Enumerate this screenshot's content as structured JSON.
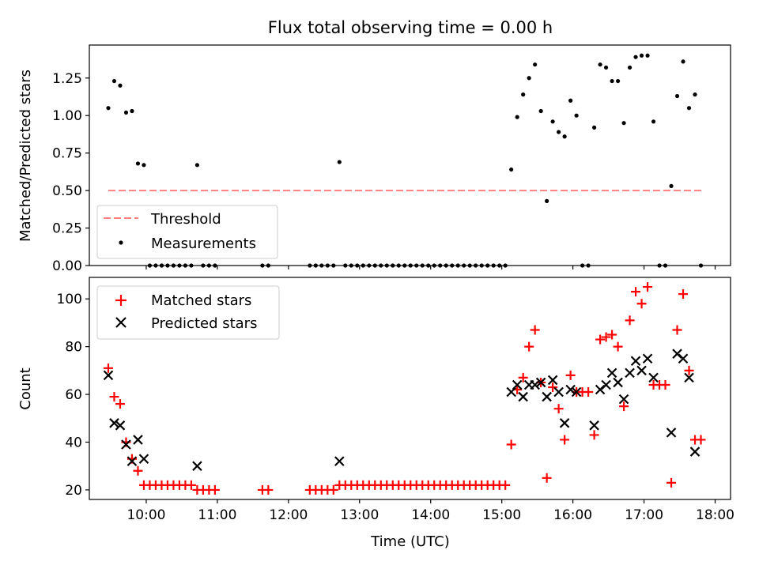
{
  "title": "Flux total observing time = 0.00 h",
  "chart_data": [
    {
      "type": "scatter",
      "ylabel": "Matched/Predicted stars",
      "xlim": [
        "09:12",
        "18:13"
      ],
      "ylim": [
        0,
        1.47
      ],
      "yticks": [
        "0.00",
        "0.25",
        "0.50",
        "0.75",
        "1.00",
        "1.25"
      ],
      "legend_position": "lower-left",
      "threshold": {
        "name": "Threshold",
        "color": "#ff7f7f",
        "style": "dashed",
        "value": 0.5,
        "x_range": [
          "09:28",
          "17:49"
        ]
      },
      "series": [
        {
          "name": "Measurements",
          "marker": "dot",
          "color": "#000000",
          "points": [
            [
              "09:28",
              1.05
            ],
            [
              "09:33",
              1.23
            ],
            [
              "09:38",
              1.2
            ],
            [
              "09:43",
              1.02
            ],
            [
              "09:48",
              1.03
            ],
            [
              "09:53",
              0.68
            ],
            [
              "09:58",
              0.67
            ],
            [
              "10:03",
              0.0
            ],
            [
              "10:08",
              0.0
            ],
            [
              "10:13",
              0.0
            ],
            [
              "10:18",
              0.0
            ],
            [
              "10:23",
              0.0
            ],
            [
              "10:28",
              0.0
            ],
            [
              "10:33",
              0.0
            ],
            [
              "10:38",
              0.0
            ],
            [
              "10:43",
              0.67
            ],
            [
              "10:48",
              0.0
            ],
            [
              "10:53",
              0.0
            ],
            [
              "10:58",
              0.0
            ],
            [
              "11:38",
              0.0
            ],
            [
              "11:43",
              0.0
            ],
            [
              "12:18",
              0.0
            ],
            [
              "12:23",
              0.0
            ],
            [
              "12:28",
              0.0
            ],
            [
              "12:33",
              0.0
            ],
            [
              "12:38",
              0.0
            ],
            [
              "12:43",
              0.69
            ],
            [
              "12:48",
              0.0
            ],
            [
              "12:53",
              0.0
            ],
            [
              "12:58",
              0.0
            ],
            [
              "13:03",
              0.0
            ],
            [
              "13:08",
              0.0
            ],
            [
              "13:13",
              0.0
            ],
            [
              "13:18",
              0.0
            ],
            [
              "13:23",
              0.0
            ],
            [
              "13:28",
              0.0
            ],
            [
              "13:33",
              0.0
            ],
            [
              "13:38",
              0.0
            ],
            [
              "13:43",
              0.0
            ],
            [
              "13:48",
              0.0
            ],
            [
              "13:53",
              0.0
            ],
            [
              "13:58",
              0.0
            ],
            [
              "14:03",
              0.0
            ],
            [
              "14:08",
              0.0
            ],
            [
              "14:13",
              0.0
            ],
            [
              "14:18",
              0.0
            ],
            [
              "14:23",
              0.0
            ],
            [
              "14:28",
              0.0
            ],
            [
              "14:33",
              0.0
            ],
            [
              "14:38",
              0.0
            ],
            [
              "14:43",
              0.0
            ],
            [
              "14:48",
              0.0
            ],
            [
              "14:53",
              0.0
            ],
            [
              "14:58",
              0.0
            ],
            [
              "15:03",
              0.0
            ],
            [
              "15:08",
              0.64
            ],
            [
              "15:13",
              0.99
            ],
            [
              "15:18",
              1.14
            ],
            [
              "15:23",
              1.25
            ],
            [
              "15:28",
              1.34
            ],
            [
              "15:33",
              1.03
            ],
            [
              "15:38",
              0.43
            ],
            [
              "15:43",
              0.96
            ],
            [
              "15:48",
              0.89
            ],
            [
              "15:53",
              0.86
            ],
            [
              "15:58",
              1.1
            ],
            [
              "16:03",
              1.0
            ],
            [
              "16:08",
              0.0
            ],
            [
              "16:13",
              0.0
            ],
            [
              "16:18",
              0.92
            ],
            [
              "16:23",
              1.34
            ],
            [
              "16:28",
              1.32
            ],
            [
              "16:33",
              1.23
            ],
            [
              "16:38",
              1.23
            ],
            [
              "16:43",
              0.95
            ],
            [
              "16:48",
              1.32
            ],
            [
              "16:53",
              1.39
            ],
            [
              "16:58",
              1.4
            ],
            [
              "17:03",
              1.4
            ],
            [
              "17:08",
              0.96
            ],
            [
              "17:13",
              0.0
            ],
            [
              "17:18",
              0.0
            ],
            [
              "17:23",
              0.53
            ],
            [
              "17:28",
              1.13
            ],
            [
              "17:33",
              1.36
            ],
            [
              "17:38",
              1.05
            ],
            [
              "17:43",
              1.14
            ],
            [
              "17:48",
              0.0
            ]
          ]
        }
      ]
    },
    {
      "type": "scatter",
      "xlabel": "Time (UTC)",
      "ylabel": "Count",
      "xlim": [
        "09:12",
        "18:13"
      ],
      "ylim": [
        16,
        109
      ],
      "xticks": [
        "10:00",
        "11:00",
        "12:00",
        "13:00",
        "14:00",
        "15:00",
        "16:00",
        "17:00",
        "18:00"
      ],
      "yticks": [
        "20",
        "40",
        "60",
        "80",
        "100"
      ],
      "legend_position": "upper-left",
      "series": [
        {
          "name": "Matched stars",
          "marker": "plus",
          "color": "#ff0000",
          "points": [
            [
              "09:28",
              71
            ],
            [
              "09:33",
              59
            ],
            [
              "09:38",
              56
            ],
            [
              "09:43",
              40
            ],
            [
              "09:48",
              33
            ],
            [
              "09:53",
              28
            ],
            [
              "09:58",
              22
            ],
            [
              "10:03",
              22
            ],
            [
              "10:08",
              22
            ],
            [
              "10:13",
              22
            ],
            [
              "10:18",
              22
            ],
            [
              "10:23",
              22
            ],
            [
              "10:28",
              22
            ],
            [
              "10:33",
              22
            ],
            [
              "10:38",
              22
            ],
            [
              "10:43",
              20
            ],
            [
              "10:48",
              20
            ],
            [
              "10:53",
              20
            ],
            [
              "10:58",
              20
            ],
            [
              "11:38",
              20
            ],
            [
              "11:43",
              20
            ],
            [
              "12:18",
              20
            ],
            [
              "12:23",
              20
            ],
            [
              "12:28",
              20
            ],
            [
              "12:33",
              20
            ],
            [
              "12:38",
              20
            ],
            [
              "12:43",
              22
            ],
            [
              "12:48",
              22
            ],
            [
              "12:53",
              22
            ],
            [
              "12:58",
              22
            ],
            [
              "13:03",
              22
            ],
            [
              "13:08",
              22
            ],
            [
              "13:13",
              22
            ],
            [
              "13:18",
              22
            ],
            [
              "13:23",
              22
            ],
            [
              "13:28",
              22
            ],
            [
              "13:33",
              22
            ],
            [
              "13:38",
              22
            ],
            [
              "13:43",
              22
            ],
            [
              "13:48",
              22
            ],
            [
              "13:53",
              22
            ],
            [
              "13:58",
              22
            ],
            [
              "14:03",
              22
            ],
            [
              "14:08",
              22
            ],
            [
              "14:13",
              22
            ],
            [
              "14:18",
              22
            ],
            [
              "14:23",
              22
            ],
            [
              "14:28",
              22
            ],
            [
              "14:33",
              22
            ],
            [
              "14:38",
              22
            ],
            [
              "14:43",
              22
            ],
            [
              "14:48",
              22
            ],
            [
              "14:53",
              22
            ],
            [
              "14:58",
              22
            ],
            [
              "15:03",
              22
            ],
            [
              "15:08",
              39
            ],
            [
              "15:13",
              62
            ],
            [
              "15:18",
              67
            ],
            [
              "15:23",
              80
            ],
            [
              "15:28",
              87
            ],
            [
              "15:33",
              65
            ],
            [
              "15:38",
              25
            ],
            [
              "15:43",
              63
            ],
            [
              "15:48",
              54
            ],
            [
              "15:53",
              41
            ],
            [
              "15:58",
              68
            ],
            [
              "16:03",
              61
            ],
            [
              "16:08",
              61
            ],
            [
              "16:13",
              61
            ],
            [
              "16:18",
              43
            ],
            [
              "16:23",
              83
            ],
            [
              "16:28",
              84
            ],
            [
              "16:33",
              85
            ],
            [
              "16:38",
              80
            ],
            [
              "16:43",
              55
            ],
            [
              "16:48",
              91
            ],
            [
              "16:53",
              103
            ],
            [
              "16:58",
              98
            ],
            [
              "17:03",
              105
            ],
            [
              "17:08",
              64
            ],
            [
              "17:13",
              64
            ],
            [
              "17:18",
              64
            ],
            [
              "17:23",
              23
            ],
            [
              "17:28",
              87
            ],
            [
              "17:33",
              102
            ],
            [
              "17:38",
              70
            ],
            [
              "17:43",
              41
            ],
            [
              "17:48",
              41
            ]
          ]
        },
        {
          "name": "Predicted stars",
          "marker": "x",
          "color": "#000000",
          "points": [
            [
              "09:28",
              68
            ],
            [
              "09:33",
              48
            ],
            [
              "09:38",
              47
            ],
            [
              "09:43",
              39
            ],
            [
              "09:48",
              32
            ],
            [
              "09:53",
              41
            ],
            [
              "09:58",
              33
            ],
            [
              "10:43",
              30
            ],
            [
              "12:43",
              32
            ],
            [
              "15:08",
              61
            ],
            [
              "15:13",
              64
            ],
            [
              "15:18",
              59
            ],
            [
              "15:23",
              64
            ],
            [
              "15:28",
              64
            ],
            [
              "15:33",
              65
            ],
            [
              "15:38",
              59
            ],
            [
              "15:43",
              66
            ],
            [
              "15:48",
              61
            ],
            [
              "15:53",
              48
            ],
            [
              "15:58",
              62
            ],
            [
              "16:03",
              61
            ],
            [
              "16:18",
              47
            ],
            [
              "16:23",
              62
            ],
            [
              "16:28",
              64
            ],
            [
              "16:33",
              69
            ],
            [
              "16:38",
              65
            ],
            [
              "16:43",
              58
            ],
            [
              "16:48",
              69
            ],
            [
              "16:53",
              74
            ],
            [
              "16:58",
              70
            ],
            [
              "17:03",
              75
            ],
            [
              "17:08",
              67
            ],
            [
              "17:23",
              44
            ],
            [
              "17:28",
              77
            ],
            [
              "17:33",
              75
            ],
            [
              "17:38",
              67
            ],
            [
              "17:43",
              36
            ]
          ]
        }
      ]
    }
  ]
}
